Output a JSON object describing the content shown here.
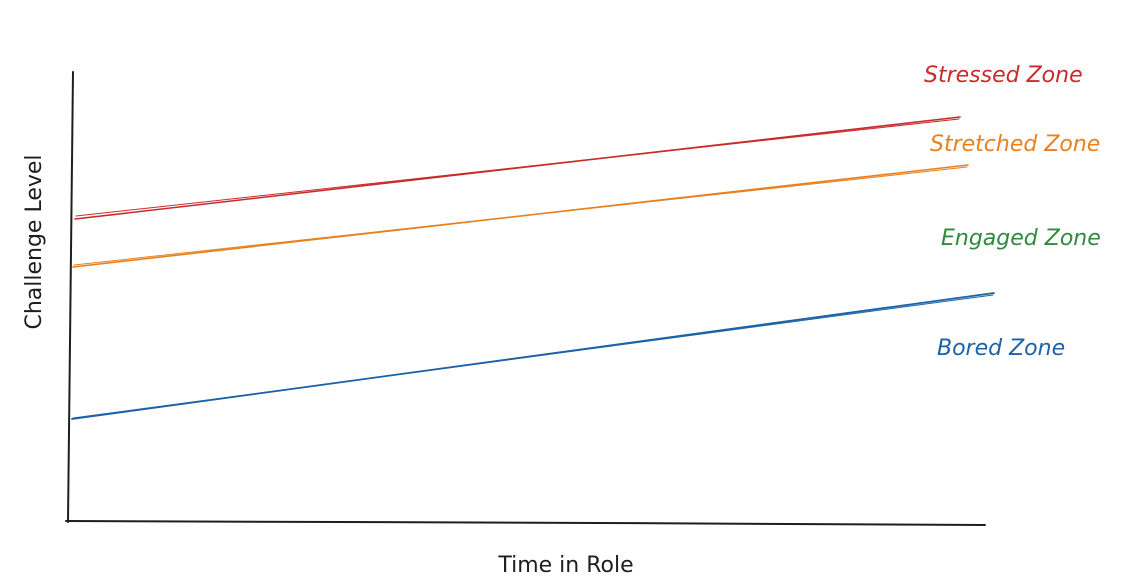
{
  "axes": {
    "x_label": "Time in Role",
    "y_label": "Challenge Level",
    "color": "#1e1e1e"
  },
  "zones": [
    {
      "key": "stressed",
      "label": "Stressed Zone",
      "color": "#c92a2a",
      "has_line": true
    },
    {
      "key": "stretched",
      "label": "Stretched Zone",
      "color": "#e8801f",
      "has_line": true
    },
    {
      "key": "engaged",
      "label": "Engaged Zone",
      "color": "#2f8a3e",
      "has_line": false
    },
    {
      "key": "bored",
      "label": "Bored Zone",
      "color": "#1c62a6",
      "has_line": true
    }
  ]
}
